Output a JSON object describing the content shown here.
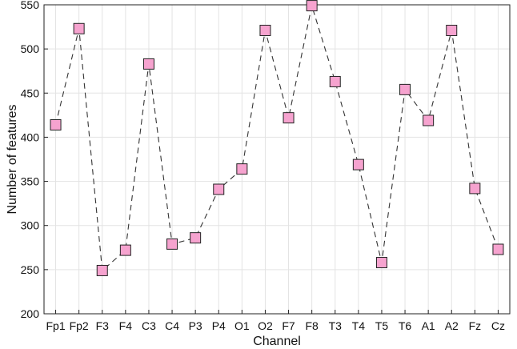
{
  "chart_data": {
    "type": "line",
    "title": "",
    "xlabel": "Channel",
    "ylabel": "Number of features",
    "categories": [
      "Fp1",
      "Fp2",
      "F3",
      "F4",
      "C3",
      "C4",
      "P3",
      "P4",
      "O1",
      "O2",
      "F7",
      "F8",
      "T3",
      "T4",
      "T5",
      "T6",
      "A1",
      "A2",
      "Fz",
      "Cz"
    ],
    "series": [
      {
        "values": [
          414,
          523,
          249,
          272,
          483,
          279,
          286,
          341,
          364,
          521,
          422,
          549,
          463,
          369,
          258,
          454,
          419,
          521,
          342,
          273
        ]
      }
    ],
    "ylim": [
      200,
      550
    ],
    "yticks": [
      200,
      250,
      300,
      350,
      400,
      450,
      500,
      550
    ],
    "grid": true,
    "line_style": "dashed",
    "marker": "square",
    "colors": {
      "marker_fill": "#f6a3cf",
      "marker_edge": "#222222",
      "line": "#333333",
      "grid": "#e3e3e3",
      "axis": "#222222"
    }
  }
}
